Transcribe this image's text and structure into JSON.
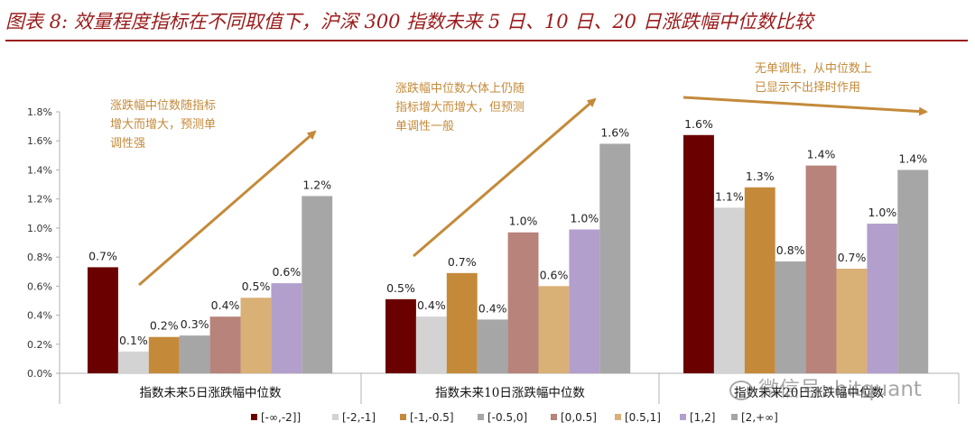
{
  "figure": {
    "title": "图表 8: 效量程度指标在不同取值下，沪深 300 指数未来 5 日、10 日、20 日涨跌幅中位数比较",
    "watermark": "微信号: hitquant"
  },
  "colors": {
    "title": "#9b1b1b",
    "annotation": "#c48a3a",
    "arrow": "#c48a3a"
  },
  "chart_data": {
    "type": "bar",
    "ylim": [
      0,
      1.8
    ],
    "yticks": [
      "0.0%",
      "0.2%",
      "0.4%",
      "0.6%",
      "0.8%",
      "1.0%",
      "1.2%",
      "1.4%",
      "1.6%",
      "1.8%"
    ],
    "grid": false,
    "legend_position": "bottom",
    "categories": [
      "指数未来5日涨跌幅中位数",
      "指数未来10日涨跌幅中位数",
      "指数未来20日涨跌幅中位数"
    ],
    "series": [
      {
        "name": "[-∞,-2]]",
        "color": "#6b0000",
        "values": [
          0.73,
          0.51,
          1.64
        ],
        "labels": [
          "0.7%",
          "0.5%",
          "1.6%"
        ]
      },
      {
        "name": "[-2,-1]",
        "color": "#d3d3d3",
        "values": [
          0.15,
          0.39,
          1.14
        ],
        "labels": [
          "0.1%",
          "0.4%",
          "1.1%"
        ]
      },
      {
        "name": "[-1,-0.5]",
        "color": "#c48a3a",
        "values": [
          0.25,
          0.69,
          1.28
        ],
        "labels": [
          "0.2%",
          "0.7%",
          "1.3%"
        ]
      },
      {
        "name": "[-0.5,0]",
        "color": "#a6a6a6",
        "values": [
          0.26,
          0.37,
          0.77
        ],
        "labels": [
          "0.3%",
          "0.4%",
          "0.8%"
        ]
      },
      {
        "name": "[0,0.5]",
        "color": "#b7837a",
        "values": [
          0.39,
          0.97,
          1.43
        ],
        "labels": [
          "0.4%",
          "1.0%",
          "1.4%"
        ]
      },
      {
        "name": "[0.5,1]",
        "color": "#d9b076",
        "values": [
          0.52,
          0.6,
          0.72
        ],
        "labels": [
          "0.5%",
          "0.6%",
          "0.7%"
        ]
      },
      {
        "name": "[1,2]",
        "color": "#b29fcc",
        "values": [
          0.62,
          0.99,
          1.03
        ],
        "labels": [
          "0.6%",
          "1.0%",
          "1.0%"
        ]
      },
      {
        "name": "[2,+∞]",
        "color": "#a6a6a6",
        "values": [
          1.22,
          1.58,
          1.4
        ],
        "labels": [
          "1.2%",
          "1.6%",
          "1.4%"
        ]
      }
    ],
    "annotations": [
      {
        "group": 0,
        "lines": [
          "涨跌幅中位数随指标",
          "增大而增大，预测单",
          "调性强"
        ]
      },
      {
        "group": 1,
        "lines": [
          "涨跌幅中位数大体上仍随",
          "指标增大而增大，但预测",
          "单调性一般"
        ]
      },
      {
        "group": 2,
        "lines": [
          "无单调性，从中位数上",
          "已显示不出择时作用"
        ]
      }
    ]
  }
}
